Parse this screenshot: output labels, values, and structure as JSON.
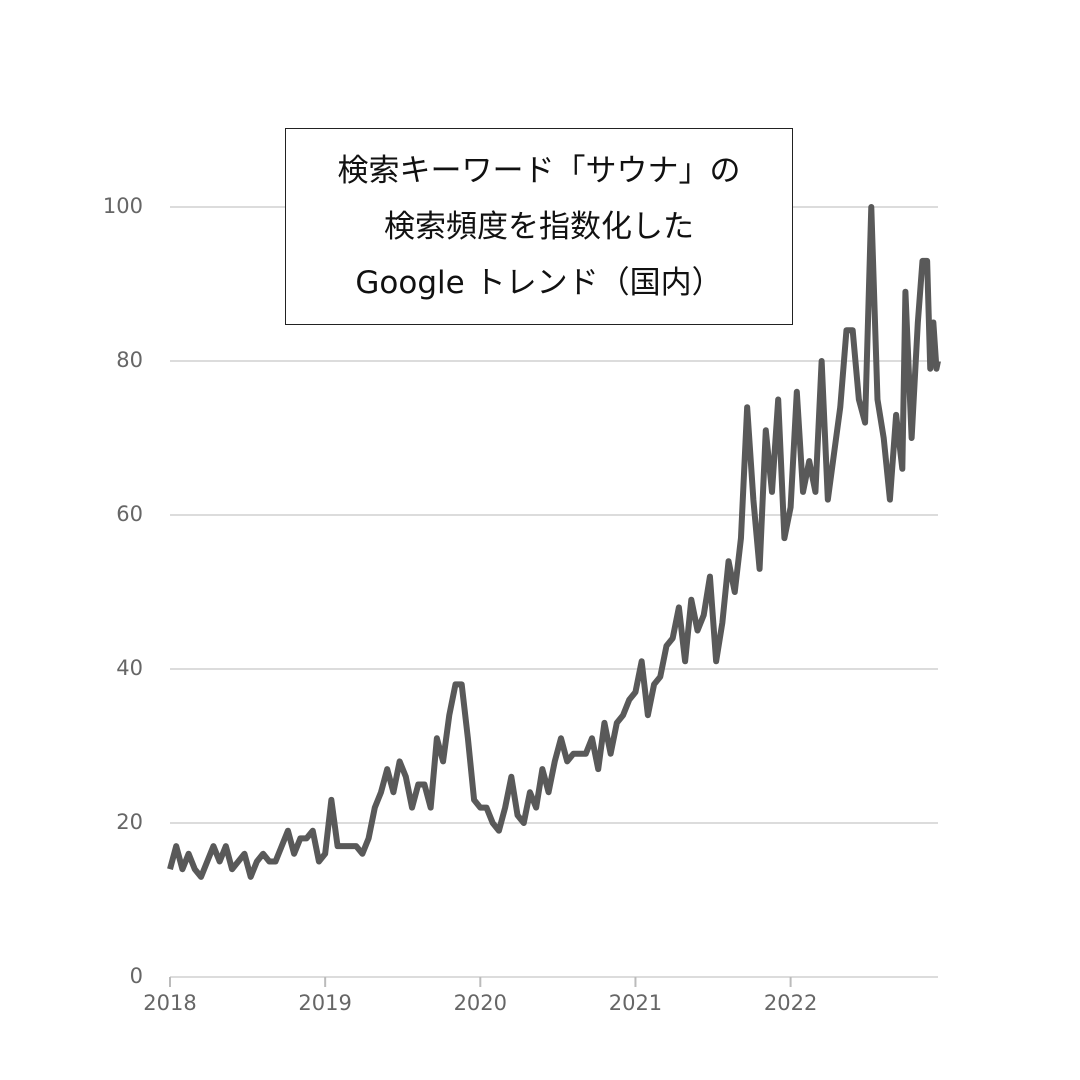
{
  "chart_data": {
    "type": "line",
    "title": [
      "検索キーワード「サウナ」の",
      "検索頻度を指数化した",
      "Google トレンド（国内）"
    ],
    "x": [
      2018.0,
      2018.04,
      2018.08,
      2018.12,
      2018.16,
      2018.2,
      2018.24,
      2018.28,
      2018.32,
      2018.36,
      2018.4,
      2018.44,
      2018.48,
      2018.52,
      2018.56,
      2018.6,
      2018.64,
      2018.68,
      2018.72,
      2018.76,
      2018.8,
      2018.84,
      2018.88,
      2018.92,
      2018.96,
      2019.0,
      2019.04,
      2019.08,
      2019.12,
      2019.16,
      2019.2,
      2019.24,
      2019.28,
      2019.32,
      2019.36,
      2019.4,
      2019.44,
      2019.48,
      2019.52,
      2019.56,
      2019.6,
      2019.64,
      2019.68,
      2019.72,
      2019.76,
      2019.8,
      2019.84,
      2019.88,
      2019.92,
      2019.96,
      2020.0,
      2020.04,
      2020.08,
      2020.12,
      2020.16,
      2020.2,
      2020.24,
      2020.28,
      2020.32,
      2020.36,
      2020.4,
      2020.44,
      2020.48,
      2020.52,
      2020.56,
      2020.6,
      2020.64,
      2020.68,
      2020.72,
      2020.76,
      2020.8,
      2020.84,
      2020.88,
      2020.92,
      2020.96,
      2021.0,
      2021.04,
      2021.08,
      2021.12,
      2021.16,
      2021.2,
      2021.24,
      2021.28,
      2021.32,
      2021.36,
      2021.4,
      2021.44,
      2021.48,
      2021.52,
      2021.56,
      2021.6,
      2021.64,
      2021.68,
      2021.72,
      2021.76,
      2021.8,
      2021.84,
      2021.88,
      2021.92,
      2021.96,
      2022.0,
      2022.04,
      2022.08,
      2022.12,
      2022.16,
      2022.2,
      2022.24,
      2022.28,
      2022.32,
      2022.36,
      2022.4,
      2022.44,
      2022.48,
      2022.52,
      2022.56,
      2022.6,
      2022.64,
      2022.68,
      2022.72,
      2022.74,
      2022.78,
      2022.82,
      2022.85,
      2022.88,
      2022.9,
      2022.92,
      2022.94,
      2022.95
    ],
    "series": [
      {
        "color": "#595959",
        "values": [
          14,
          17,
          14,
          16,
          14,
          13,
          15,
          17,
          15,
          17,
          14,
          15,
          16,
          13,
          15,
          16,
          15,
          15,
          17,
          19,
          16,
          18,
          18,
          19,
          15,
          16,
          23,
          17,
          17,
          17,
          17,
          16,
          18,
          22,
          24,
          27,
          24,
          28,
          26,
          22,
          25,
          25,
          22,
          31,
          28,
          34,
          38,
          38,
          31,
          23,
          22,
          22,
          20,
          19,
          22,
          26,
          21,
          20,
          24,
          22,
          27,
          24,
          28,
          31,
          28,
          29,
          29,
          29,
          31,
          27,
          33,
          29,
          33,
          34,
          36,
          37,
          41,
          34,
          38,
          39,
          43,
          44,
          48,
          41,
          49,
          45,
          47,
          52,
          41,
          46,
          54,
          50,
          57,
          74,
          62,
          53,
          71,
          63,
          75,
          57,
          61,
          76,
          63,
          67,
          63,
          80,
          62,
          68,
          74,
          84,
          84,
          75,
          72,
          100,
          75,
          70,
          62,
          73,
          66,
          89,
          70,
          85,
          93,
          93,
          79,
          85,
          79,
          80
        ]
      }
    ],
    "xlim": [
      2018,
      2022.95
    ],
    "xticks": [
      2018,
      2019,
      2020,
      2021,
      2022
    ],
    "ylim": [
      0,
      100
    ],
    "yticks": [
      0,
      20,
      40,
      60,
      80,
      100
    ],
    "grid": true
  }
}
